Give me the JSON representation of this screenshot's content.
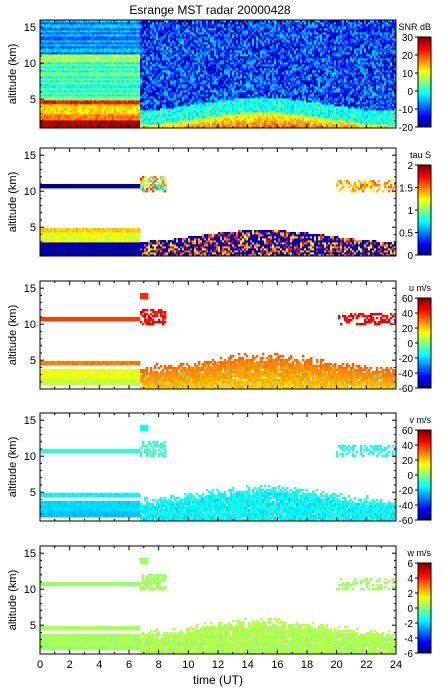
{
  "figure": {
    "title": "Esrange MST radar 20000428"
  },
  "chart_data": [
    {
      "type": "heatmap",
      "ylabel": "altitude (km)",
      "xlabel": "",
      "xlim": [
        0,
        24
      ],
      "ylim": [
        1,
        16
      ],
      "yticks": [
        5,
        10,
        15
      ],
      "colorbar": {
        "label": "SNR dB",
        "min": -20,
        "max": 30,
        "ticks": [
          30,
          20,
          10,
          0,
          -10,
          -20
        ]
      },
      "field": "snr"
    },
    {
      "type": "heatmap",
      "ylabel": "altitude (km)",
      "xlabel": "",
      "xlim": [
        0,
        24
      ],
      "ylim": [
        1,
        16
      ],
      "yticks": [
        5,
        10,
        15
      ],
      "colorbar": {
        "label": "tau S",
        "min": 0,
        "max": 2,
        "ticks": [
          2,
          1.5,
          1,
          0.5,
          0
        ]
      },
      "field": "tau"
    },
    {
      "type": "heatmap",
      "ylabel": "altitude (km)",
      "xlabel": "",
      "xlim": [
        0,
        24
      ],
      "ylim": [
        1,
        16
      ],
      "yticks": [
        5,
        10,
        15
      ],
      "colorbar": {
        "label": "u m/s",
        "min": -60,
        "max": 60,
        "ticks": [
          60,
          40,
          20,
          0,
          -20,
          -40,
          -60
        ]
      },
      "field": "u"
    },
    {
      "type": "heatmap",
      "ylabel": "altitude (km)",
      "xlabel": "",
      "xlim": [
        0,
        24
      ],
      "ylim": [
        1,
        16
      ],
      "yticks": [
        5,
        10,
        15
      ],
      "colorbar": {
        "label": "v m/s",
        "min": -60,
        "max": 60,
        "ticks": [
          60,
          40,
          20,
          0,
          -20,
          -40,
          -60
        ]
      },
      "field": "v"
    },
    {
      "type": "heatmap",
      "ylabel": "altitude (km)",
      "xlabel": "time (UT)",
      "xlim": [
        0,
        24
      ],
      "ylim": [
        1,
        16
      ],
      "yticks": [
        5,
        10,
        15
      ],
      "xticks": [
        0,
        2,
        4,
        6,
        8,
        10,
        12,
        14,
        16,
        18,
        20,
        22,
        24
      ],
      "colorbar": {
        "label": "w m/s",
        "min": -6,
        "max": 6,
        "ticks": [
          6,
          4,
          2,
          0,
          -2,
          -4,
          -6
        ]
      },
      "field": "w"
    }
  ]
}
